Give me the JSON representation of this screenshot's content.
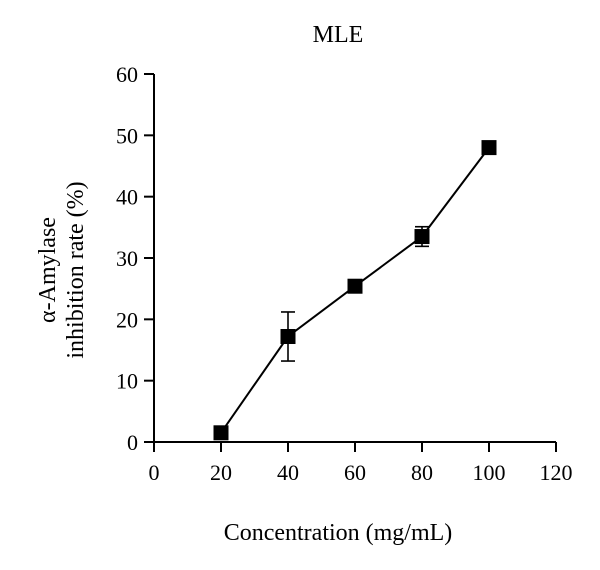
{
  "chart_data": {
    "type": "line",
    "title": "MLE",
    "xlabel": "Concentration (mg/mL)",
    "ylabel_lines": [
      "α-Amylase",
      "inhibition rate (%)"
    ],
    "xlim": [
      0,
      120
    ],
    "ylim": [
      0,
      60
    ],
    "xticks": [
      0,
      20,
      40,
      60,
      80,
      100,
      120
    ],
    "yticks": [
      0,
      10,
      20,
      30,
      40,
      50,
      60
    ],
    "grid": false,
    "marker": "square",
    "series": [
      {
        "x": [
          20,
          40,
          60,
          80,
          100
        ],
        "y": [
          1.5,
          17.2,
          25.4,
          33.5,
          48.0
        ],
        "err": [
          0.3,
          4.0,
          0.5,
          1.6,
          0.4
        ]
      }
    ]
  }
}
